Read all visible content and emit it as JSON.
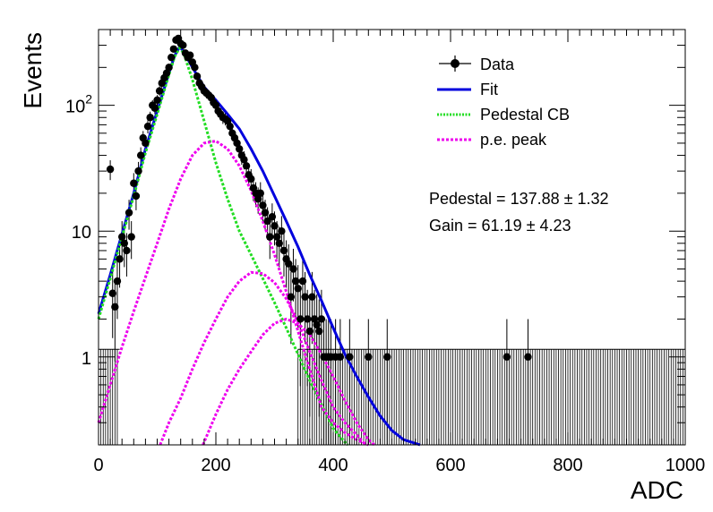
{
  "chart_data": {
    "type": "scatter",
    "xlabel": "ADC",
    "ylabel": "Events",
    "xlim": [
      0,
      1000
    ],
    "ylim": [
      0.2,
      400
    ],
    "yscale": "log",
    "x_ticks": [
      {
        "value": 0,
        "label": "0"
      },
      {
        "value": 200,
        "label": "200"
      },
      {
        "value": 400,
        "label": "400"
      },
      {
        "value": 600,
        "label": "600"
      },
      {
        "value": 800,
        "label": "800"
      },
      {
        "value": 1000,
        "label": "1000"
      }
    ],
    "y_ticks": [
      {
        "value": 1,
        "label": "1"
      },
      {
        "value": 10,
        "label": "10"
      },
      {
        "value": 100,
        "label": "10",
        "exponent": "2"
      }
    ],
    "legend": {
      "position": "top-right",
      "entries": [
        {
          "label": "Data",
          "style": "marker",
          "color": "#000000"
        },
        {
          "label": "Fit",
          "style": "solid",
          "color": "#0000dd"
        },
        {
          "label": "Pedestal CB",
          "style": "dotted",
          "color": "#22dd22"
        },
        {
          "label": "p.e. peak",
          "style": "dotted",
          "color": "#ee00ee"
        }
      ]
    },
    "annotations": [
      {
        "text": "Pedestal = 137.88 ± 1.32"
      },
      {
        "text": "Gain = 61.19 ± 4.23"
      }
    ],
    "data_points": [
      {
        "x": 20,
        "y": 31
      },
      {
        "x": 24,
        "y": 3.2
      },
      {
        "x": 28,
        "y": 2.5
      },
      {
        "x": 32,
        "y": 4
      },
      {
        "x": 36,
        "y": 6
      },
      {
        "x": 40,
        "y": 9
      },
      {
        "x": 44,
        "y": 8
      },
      {
        "x": 48,
        "y": 7
      },
      {
        "x": 52,
        "y": 14
      },
      {
        "x": 56,
        "y": 9
      },
      {
        "x": 60,
        "y": 24
      },
      {
        "x": 64,
        "y": 19
      },
      {
        "x": 68,
        "y": 30
      },
      {
        "x": 72,
        "y": 40
      },
      {
        "x": 76,
        "y": 55
      },
      {
        "x": 80,
        "y": 50
      },
      {
        "x": 84,
        "y": 68
      },
      {
        "x": 88,
        "y": 80
      },
      {
        "x": 92,
        "y": 100
      },
      {
        "x": 96,
        "y": 95
      },
      {
        "x": 100,
        "y": 110
      },
      {
        "x": 104,
        "y": 130
      },
      {
        "x": 108,
        "y": 150
      },
      {
        "x": 112,
        "y": 165
      },
      {
        "x": 116,
        "y": 180
      },
      {
        "x": 120,
        "y": 200
      },
      {
        "x": 124,
        "y": 240
      },
      {
        "x": 128,
        "y": 280
      },
      {
        "x": 132,
        "y": 330
      },
      {
        "x": 136,
        "y": 340
      },
      {
        "x": 140,
        "y": 310
      },
      {
        "x": 144,
        "y": 300
      },
      {
        "x": 148,
        "y": 260
      },
      {
        "x": 152,
        "y": 240
      },
      {
        "x": 156,
        "y": 250
      },
      {
        "x": 160,
        "y": 220
      },
      {
        "x": 164,
        "y": 200
      },
      {
        "x": 168,
        "y": 170
      },
      {
        "x": 172,
        "y": 150
      },
      {
        "x": 176,
        "y": 140
      },
      {
        "x": 180,
        "y": 130
      },
      {
        "x": 184,
        "y": 125
      },
      {
        "x": 188,
        "y": 120
      },
      {
        "x": 192,
        "y": 115
      },
      {
        "x": 196,
        "y": 105
      },
      {
        "x": 200,
        "y": 100
      },
      {
        "x": 204,
        "y": 90
      },
      {
        "x": 208,
        "y": 85
      },
      {
        "x": 212,
        "y": 80
      },
      {
        "x": 216,
        "y": 78
      },
      {
        "x": 220,
        "y": 75
      },
      {
        "x": 224,
        "y": 68
      },
      {
        "x": 228,
        "y": 60
      },
      {
        "x": 232,
        "y": 55
      },
      {
        "x": 236,
        "y": 50
      },
      {
        "x": 240,
        "y": 45
      },
      {
        "x": 244,
        "y": 40
      },
      {
        "x": 248,
        "y": 37
      },
      {
        "x": 252,
        "y": 33
      },
      {
        "x": 256,
        "y": 28
      },
      {
        "x": 260,
        "y": 26
      },
      {
        "x": 264,
        "y": 22
      },
      {
        "x": 268,
        "y": 20
      },
      {
        "x": 272,
        "y": 18
      },
      {
        "x": 276,
        "y": 20
      },
      {
        "x": 280,
        "y": 16
      },
      {
        "x": 284,
        "y": 14
      },
      {
        "x": 288,
        "y": 12
      },
      {
        "x": 292,
        "y": 9
      },
      {
        "x": 296,
        "y": 13
      },
      {
        "x": 300,
        "y": 11
      },
      {
        "x": 304,
        "y": 9
      },
      {
        "x": 308,
        "y": 8
      },
      {
        "x": 312,
        "y": 10
      },
      {
        "x": 316,
        "y": 7
      },
      {
        "x": 320,
        "y": 6
      },
      {
        "x": 324,
        "y": 5.5
      },
      {
        "x": 328,
        "y": 3
      },
      {
        "x": 332,
        "y": 5
      },
      {
        "x": 336,
        "y": 4
      },
      {
        "x": 340,
        "y": 3.5
      },
      {
        "x": 344,
        "y": 2
      },
      {
        "x": 348,
        "y": 4
      },
      {
        "x": 352,
        "y": 3
      },
      {
        "x": 356,
        "y": 2
      },
      {
        "x": 360,
        "y": 1.6
      },
      {
        "x": 364,
        "y": 3
      },
      {
        "x": 368,
        "y": 2
      },
      {
        "x": 372,
        "y": 1.8
      },
      {
        "x": 376,
        "y": 1.6
      },
      {
        "x": 380,
        "y": 2
      },
      {
        "x": 384,
        "y": 1
      },
      {
        "x": 388,
        "y": 1
      },
      {
        "x": 392,
        "y": 1
      },
      {
        "x": 396,
        "y": 1
      },
      {
        "x": 404,
        "y": 1
      },
      {
        "x": 412,
        "y": 1
      },
      {
        "x": 428,
        "y": 1
      },
      {
        "x": 460,
        "y": 1
      },
      {
        "x": 492,
        "y": 1
      },
      {
        "x": 696,
        "y": 1
      },
      {
        "x": 732,
        "y": 1
      }
    ],
    "series": [
      {
        "name": "Fit",
        "color": "#0000dd",
        "style": "solid",
        "x": [
          0,
          20,
          40,
          60,
          80,
          100,
          120,
          130,
          138,
          145,
          160,
          180,
          200,
          220,
          240,
          260,
          280,
          300,
          320,
          340,
          360,
          380,
          400,
          420,
          440,
          460,
          480,
          500,
          520,
          548
        ],
        "y": [
          2.2,
          4.5,
          9.5,
          20,
          45,
          90,
          180,
          250,
          290,
          270,
          200,
          140,
          110,
          85,
          65,
          45,
          30,
          19,
          12,
          7.5,
          4.5,
          2.8,
          1.7,
          1.05,
          0.7,
          0.48,
          0.34,
          0.26,
          0.22,
          0.2
        ]
      },
      {
        "name": "Pedestal CB",
        "color": "#22dd22",
        "style": "dotted",
        "x": [
          0,
          20,
          40,
          60,
          80,
          100,
          120,
          130,
          138,
          145,
          160,
          180,
          200,
          220,
          240,
          260,
          280,
          300,
          320,
          340,
          360,
          380,
          400,
          420,
          425
        ],
        "y": [
          2.0,
          4.2,
          9,
          19,
          42,
          85,
          175,
          245,
          285,
          260,
          160,
          75,
          35,
          18,
          10,
          6.5,
          4.2,
          2.7,
          1.7,
          1.05,
          0.65,
          0.42,
          0.27,
          0.21,
          0.2
        ]
      },
      {
        "name": "p.e. peak 1",
        "color": "#ee00ee",
        "style": "dotted",
        "x": [
          0,
          20,
          40,
          60,
          80,
          100,
          120,
          140,
          160,
          180,
          200,
          220,
          240,
          260,
          280,
          300,
          320,
          340,
          360,
          380,
          400,
          420,
          440,
          460
        ],
        "y": [
          0.3,
          0.6,
          1.2,
          2.3,
          4.3,
          8,
          15,
          26,
          40,
          50,
          52,
          45,
          33,
          21,
          12,
          6.5,
          3.3,
          1.6,
          0.8,
          0.4,
          0.3,
          0.25,
          0.22,
          0.2
        ]
      },
      {
        "name": "p.e. peak 2",
        "color": "#ee00ee",
        "style": "dotted",
        "x": [
          105,
          120,
          140,
          160,
          180,
          200,
          220,
          240,
          260,
          280,
          300,
          320,
          340,
          360,
          380,
          400,
          420,
          440,
          455
        ],
        "y": [
          0.2,
          0.3,
          0.47,
          0.8,
          1.3,
          2.0,
          3.0,
          4.0,
          4.7,
          4.6,
          3.9,
          2.9,
          1.9,
          1.1,
          0.65,
          0.4,
          0.3,
          0.24,
          0.2
        ]
      },
      {
        "name": "p.e. peak 3",
        "color": "#ee00ee",
        "style": "dotted",
        "x": [
          178,
          200,
          220,
          240,
          260,
          280,
          300,
          320,
          340,
          360,
          380,
          400,
          420,
          440,
          460,
          470
        ],
        "y": [
          0.2,
          0.35,
          0.55,
          0.8,
          1.1,
          1.5,
          1.85,
          2.0,
          1.85,
          1.5,
          1.05,
          0.7,
          0.45,
          0.3,
          0.22,
          0.2
        ]
      }
    ]
  }
}
